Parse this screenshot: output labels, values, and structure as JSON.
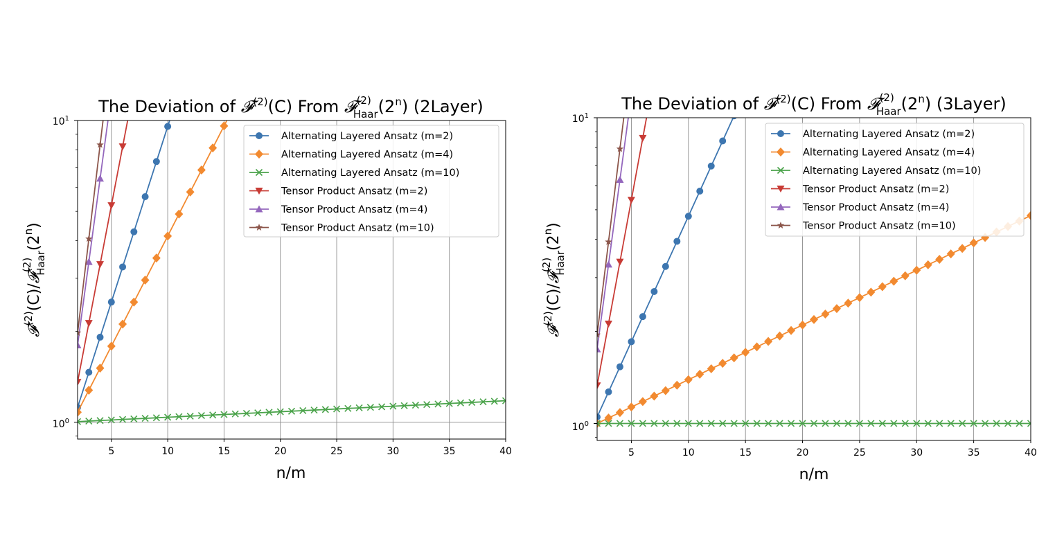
{
  "figure": {
    "background": "#ffffff"
  },
  "chart_data": [
    {
      "type": "line",
      "title": {
        "prefix": "The Deviation of ",
        "f_symbol": "𝓕",
        "sup": "(2)",
        "arg": "(C)",
        "from": " From ",
        "haar_symbol": "𝓕",
        "haar_sub": "Haar",
        "haar_sup": "(2)",
        "haar_arg": "(2",
        "haar_arg_sup": "n",
        "haar_arg_close": ")",
        "suffix": " (2Layer)"
      },
      "xlabel": "n/m",
      "ylabel": {
        "f_symbol": "𝓕",
        "sup": "(2)",
        "arg": "(C)/",
        "haar_symbol": "𝓕",
        "haar_sub": "Haar",
        "haar_sup": "(2)",
        "haar_arg": "(2",
        "haar_arg_sup": "n",
        "haar_arg_close": ")"
      },
      "yscale": "log",
      "xlim": [
        2,
        40
      ],
      "ylim": [
        0.88,
        10
      ],
      "xticks": [
        5,
        10,
        15,
        20,
        25,
        30,
        35,
        40
      ],
      "xtick_labels": [
        "5",
        "10",
        "15",
        "20",
        "25",
        "30",
        "35",
        "40"
      ],
      "ytick_labels": [
        {
          "base": "10",
          "exp": "0",
          "value": 1
        },
        {
          "base": "10",
          "exp": "1",
          "value": 10
        }
      ],
      "grid": "vertical-major and y=10^0",
      "legend_position": "upper right",
      "series": [
        {
          "name": "Alternating Layered Ansatz (m=2)",
          "color": "#3d76b0",
          "marker": "circle",
          "x_start": 2,
          "growth": 0.268,
          "y0": 1.12
        },
        {
          "name": "Alternating Layered Ansatz (m=4)",
          "color": "#f28a30",
          "marker": "diamond",
          "x_start": 2,
          "growth": 0.168,
          "y0": 1.08
        },
        {
          "name": "Alternating Layered Ansatz (m=10)",
          "color": "#4ba34b",
          "marker": "x",
          "x_start": 2,
          "growth": 0.0042,
          "y0": 1.005
        },
        {
          "name": "Tensor Product Ansatz (m=2)",
          "color": "#c83b35",
          "marker": "triangle-down",
          "x_start": 2,
          "growth": 0.449,
          "y0": 1.36
        },
        {
          "name": "Tensor Product Ansatz (m=4)",
          "color": "#9467bd",
          "marker": "triangle-up",
          "x_start": 2,
          "growth": 0.636,
          "y0": 1.8
        },
        {
          "name": "Tensor Product Ansatz (m=10)",
          "color": "#8c564b",
          "marker": "star",
          "x_start": 2,
          "growth": 0.717,
          "y0": 1.98
        }
      ]
    },
    {
      "type": "line",
      "title": {
        "prefix": "The Deviation of ",
        "f_symbol": "𝓕",
        "sup": "(2)",
        "arg": "(C)",
        "from": " From ",
        "haar_symbol": "𝓕",
        "haar_sub": "Haar",
        "haar_sup": "(2)",
        "haar_arg": "(2",
        "haar_arg_sup": "n",
        "haar_arg_close": ")",
        "suffix": " (3Layer)"
      },
      "xlabel": "n/m",
      "ylabel": {
        "f_symbol": "𝓕",
        "sup": "(2)",
        "arg": "(C)/",
        "haar_symbol": "𝓕",
        "haar_sub": "Haar",
        "haar_sup": "(2)",
        "haar_arg": "(2",
        "haar_arg_sup": "n",
        "haar_arg_close": ")"
      },
      "yscale": "log",
      "xlim": [
        2,
        40
      ],
      "ylim": [
        0.88,
        10
      ],
      "xticks": [
        5,
        10,
        15,
        20,
        25,
        30,
        35,
        40
      ],
      "xtick_labels": [
        "5",
        "10",
        "15",
        "20",
        "25",
        "30",
        "35",
        "40"
      ],
      "ytick_labels": [
        {
          "base": "10",
          "exp": "0",
          "value": 1
        },
        {
          "base": "10",
          "exp": "1",
          "value": 10
        }
      ],
      "grid": "vertical-major",
      "legend_position": "upper right",
      "series": [
        {
          "name": "Alternating Layered Ansatz (m=2)",
          "color": "#3d76b0",
          "marker": "circle",
          "x_start": 2,
          "growth": 0.189,
          "y0": 1.05
        },
        {
          "name": "Alternating Layered Ansatz (m=4)",
          "color": "#f28a30",
          "marker": "diamond",
          "x_start": 2,
          "growth": 0.0412,
          "y0": 1.0
        },
        {
          "name": "Alternating Layered Ansatz (m=10)",
          "color": "#4ba34b",
          "marker": "x",
          "x_start": 2,
          "growth": 0.0,
          "y0": 1.0
        },
        {
          "name": "Tensor Product Ansatz (m=2)",
          "color": "#c83b35",
          "marker": "triangle-down",
          "x_start": 2,
          "growth": 0.466,
          "y0": 1.33
        },
        {
          "name": "Tensor Product Ansatz (m=4)",
          "color": "#9467bd",
          "marker": "triangle-up",
          "x_start": 2,
          "growth": 0.638,
          "y0": 1.75
        },
        {
          "name": "Tensor Product Ansatz (m=10)",
          "color": "#8c564b",
          "marker": "star",
          "x_start": 2,
          "growth": 0.7,
          "y0": 1.95
        }
      ]
    }
  ]
}
